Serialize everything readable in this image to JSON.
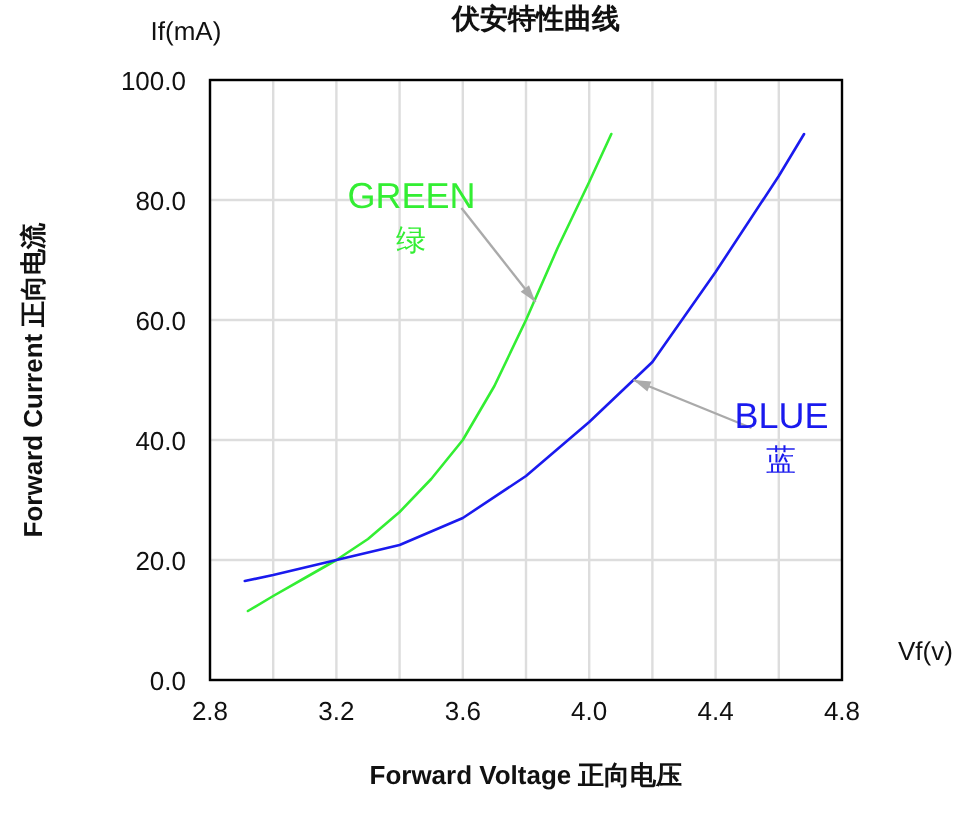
{
  "chart_data": {
    "type": "line",
    "title": "伏安特性曲线",
    "xlabel": "Forward Voltage 正向电压",
    "ylabel": "Forward Current 正向电流",
    "annotations": [
      "If(mA)",
      "Vf(v)",
      {
        "text": "GREEN\n绿",
        "x": 3.83,
        "y": 63
      },
      {
        "text": "BLUE\n蓝",
        "x": 4.14,
        "y": 50
      }
    ],
    "xlim": [
      2.8,
      4.8
    ],
    "ylim": [
      0,
      100
    ],
    "xticks": [
      {
        "value": 2.8,
        "label": "2.8"
      },
      {
        "value": 3.2,
        "label": "3.2"
      },
      {
        "value": 3.6,
        "label": "3.6"
      },
      {
        "value": 4.0,
        "label": "4.0"
      },
      {
        "value": 4.4,
        "label": "4.4"
      },
      {
        "value": 4.8,
        "label": "4.8"
      }
    ],
    "yticks": [
      {
        "value": 0,
        "label": "0.0"
      },
      {
        "value": 20,
        "label": "20.0"
      },
      {
        "value": 40,
        "label": "40.0"
      },
      {
        "value": 60,
        "label": "60.0"
      },
      {
        "value": 80,
        "label": "80.0"
      },
      {
        "value": 100,
        "label": "100.0"
      }
    ],
    "grid": true,
    "marker": "none",
    "line_style": "solid",
    "series": [
      {
        "color": "#33ee33",
        "x": [
          2.92,
          3.0,
          3.1,
          3.2,
          3.3,
          3.4,
          3.5,
          3.6,
          3.7,
          3.8,
          3.9,
          4.0,
          4.07
        ],
        "values": [
          11.5,
          14,
          17,
          20,
          23.5,
          28,
          33.5,
          40,
          49,
          60,
          72,
          83,
          91
        ]
      },
      {
        "color": "#1a1aee",
        "x": [
          2.91,
          3.0,
          3.2,
          3.4,
          3.6,
          3.8,
          4.0,
          4.2,
          4.4,
          4.6,
          4.68
        ],
        "values": [
          16.5,
          17.5,
          20,
          22.5,
          27,
          34,
          43,
          53,
          68,
          84,
          91
        ]
      }
    ]
  }
}
